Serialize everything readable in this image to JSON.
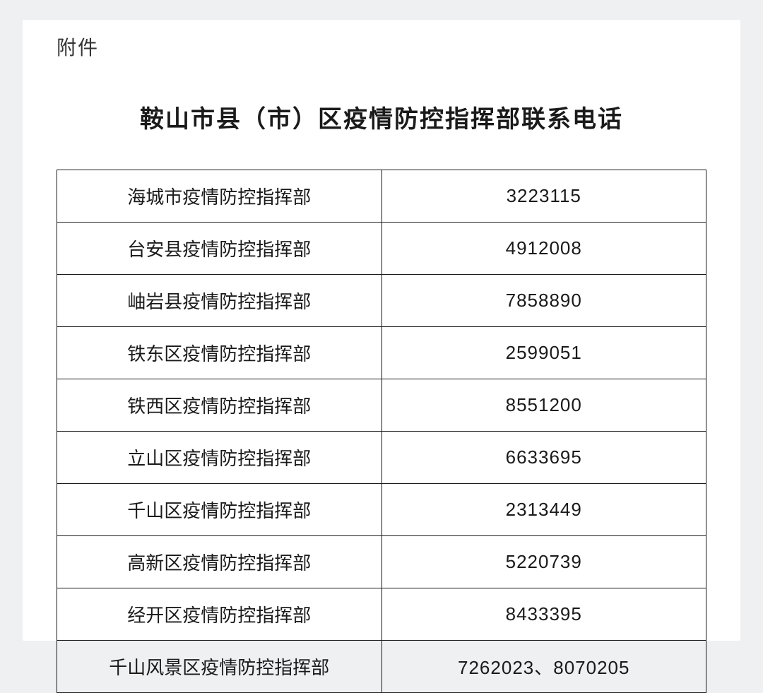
{
  "attachment_label": "附件",
  "title": "鞍山市县（市）区疫情防控指挥部联系电话",
  "table": {
    "type": "table",
    "columns": [
      "name",
      "phone"
    ],
    "col_widths": [
      "50%",
      "50%"
    ],
    "border_color": "#1a1a1a",
    "background_color": "#ffffff",
    "text_color": "#1a1a1a",
    "font_size": 26,
    "rows": [
      {
        "name": "海城市疫情防控指挥部",
        "phone": "3223115"
      },
      {
        "name": "台安县疫情防控指挥部",
        "phone": "4912008"
      },
      {
        "name": "岫岩县疫情防控指挥部",
        "phone": "7858890"
      },
      {
        "name": "铁东区疫情防控指挥部",
        "phone": "2599051"
      },
      {
        "name": "铁西区疫情防控指挥部",
        "phone": "8551200"
      },
      {
        "name": "立山区疫情防控指挥部",
        "phone": "6633695"
      },
      {
        "name": "千山区疫情防控指挥部",
        "phone": "2313449"
      },
      {
        "name": "高新区疫情防控指挥部",
        "phone": "5220739"
      },
      {
        "name": "经开区疫情防控指挥部",
        "phone": "8433395"
      },
      {
        "name": "千山风景区疫情防控指挥部",
        "phone": "7262023、8070205"
      }
    ]
  },
  "page_background_color": "#eff0f2"
}
